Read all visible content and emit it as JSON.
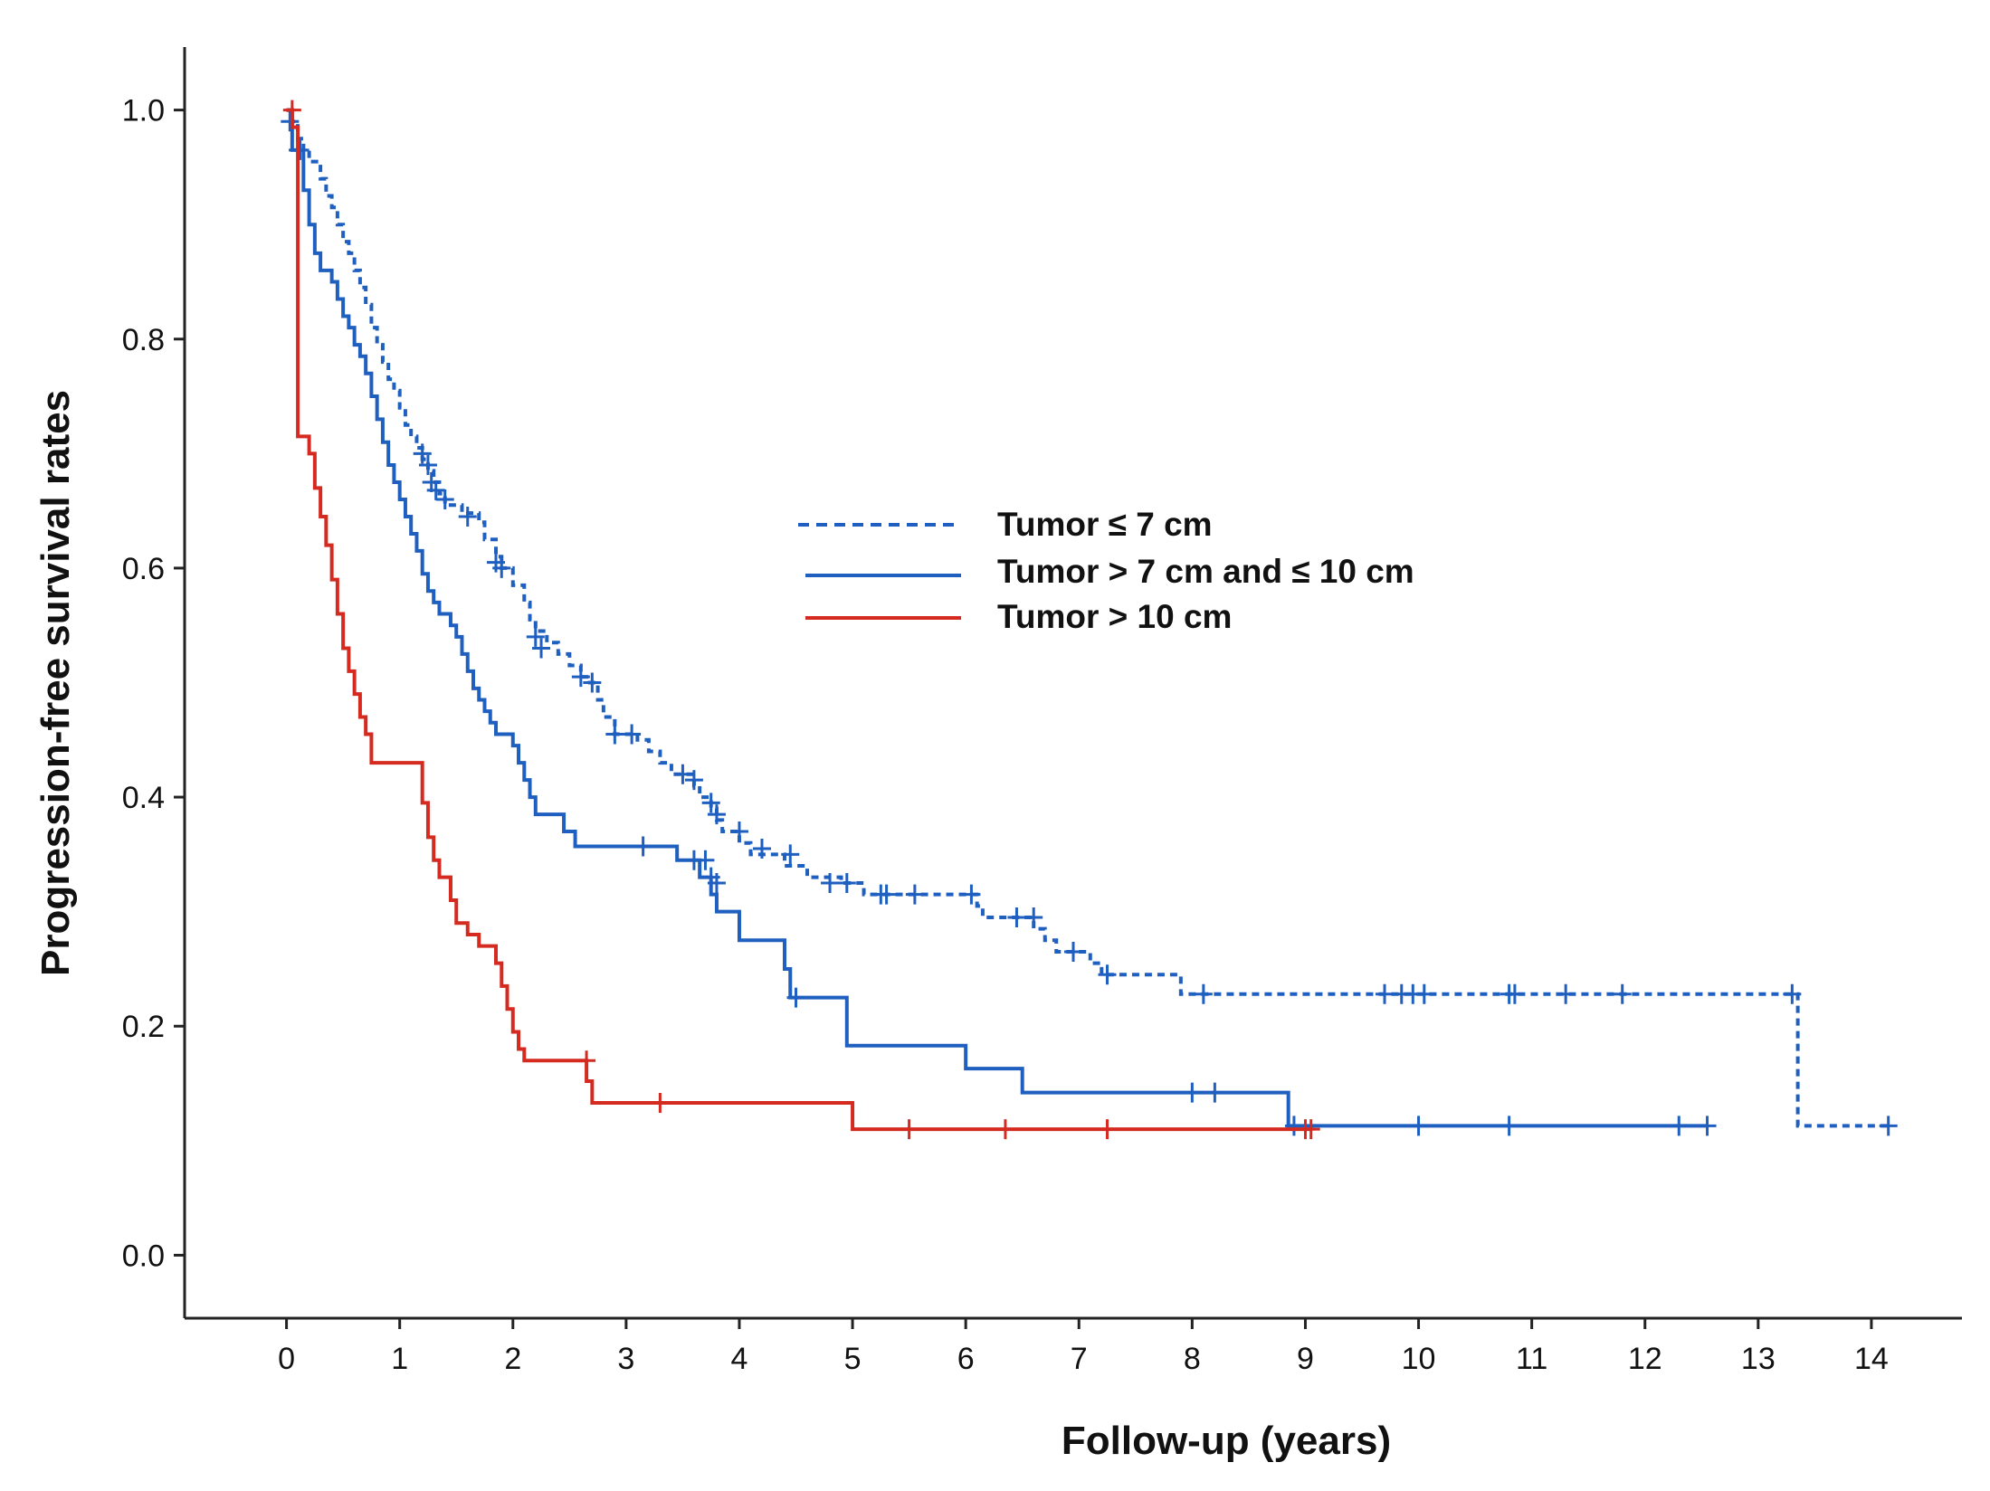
{
  "chart_data": {
    "type": "line",
    "subtype": "kaplan-meier-step",
    "title": "",
    "xlabel": "Follow-up (years)",
    "ylabel": "Progression-free survival rates",
    "xlim": [
      -0.9,
      14.8
    ],
    "ylim": [
      -0.055,
      1.055
    ],
    "xticks": [
      0,
      1,
      2,
      3,
      4,
      5,
      6,
      7,
      8,
      9,
      10,
      11,
      12,
      13,
      14
    ],
    "yticks": [
      0.0,
      0.2,
      0.4,
      0.6,
      0.8,
      1.0
    ],
    "ytick_labels": [
      "0.0",
      "0.2",
      "0.4",
      "0.6",
      "0.8",
      "1.0"
    ],
    "grid": false,
    "legend_position": "center",
    "series": [
      {
        "name": "Tumor ≤ 7 cm",
        "color": "#1f5fbf",
        "dash": "dashed",
        "steps": [
          [
            0,
            1.0
          ],
          [
            0.05,
            0.99
          ],
          [
            0.1,
            0.975
          ],
          [
            0.15,
            0.965
          ],
          [
            0.2,
            0.955
          ],
          [
            0.3,
            0.94
          ],
          [
            0.35,
            0.925
          ],
          [
            0.4,
            0.915
          ],
          [
            0.45,
            0.9
          ],
          [
            0.5,
            0.885
          ],
          [
            0.55,
            0.875
          ],
          [
            0.6,
            0.86
          ],
          [
            0.65,
            0.845
          ],
          [
            0.7,
            0.83
          ],
          [
            0.75,
            0.81
          ],
          [
            0.8,
            0.795
          ],
          [
            0.85,
            0.78
          ],
          [
            0.9,
            0.765
          ],
          [
            0.95,
            0.755
          ],
          [
            1.0,
            0.74
          ],
          [
            1.05,
            0.725
          ],
          [
            1.1,
            0.715
          ],
          [
            1.15,
            0.705
          ],
          [
            1.2,
            0.695
          ],
          [
            1.25,
            0.685
          ],
          [
            1.3,
            0.675
          ],
          [
            1.35,
            0.665
          ],
          [
            1.4,
            0.655
          ],
          [
            1.55,
            0.648
          ],
          [
            1.7,
            0.64
          ],
          [
            1.75,
            0.625
          ],
          [
            1.85,
            0.61
          ],
          [
            1.9,
            0.6
          ],
          [
            2.0,
            0.585
          ],
          [
            2.1,
            0.57
          ],
          [
            2.15,
            0.555
          ],
          [
            2.2,
            0.545
          ],
          [
            2.3,
            0.535
          ],
          [
            2.4,
            0.525
          ],
          [
            2.5,
            0.515
          ],
          [
            2.6,
            0.505
          ],
          [
            2.65,
            0.5
          ],
          [
            2.75,
            0.485
          ],
          [
            2.8,
            0.47
          ],
          [
            2.9,
            0.455
          ],
          [
            3.1,
            0.45
          ],
          [
            3.2,
            0.44
          ],
          [
            3.3,
            0.43
          ],
          [
            3.4,
            0.42
          ],
          [
            3.6,
            0.41
          ],
          [
            3.65,
            0.4
          ],
          [
            3.75,
            0.39
          ],
          [
            3.8,
            0.38
          ],
          [
            3.85,
            0.37
          ],
          [
            4.0,
            0.36
          ],
          [
            4.1,
            0.35
          ],
          [
            4.4,
            0.34
          ],
          [
            4.6,
            0.33
          ],
          [
            4.9,
            0.325
          ],
          [
            5.1,
            0.315
          ],
          [
            6.1,
            0.305
          ],
          [
            6.15,
            0.295
          ],
          [
            6.6,
            0.285
          ],
          [
            6.7,
            0.275
          ],
          [
            6.8,
            0.265
          ],
          [
            7.1,
            0.255
          ],
          [
            7.2,
            0.245
          ],
          [
            7.9,
            0.228
          ],
          [
            13.35,
            0.113
          ],
          [
            14.15,
            0.113
          ]
        ],
        "censored": [
          [
            0.03,
            0.99
          ],
          [
            0.12,
            0.965
          ],
          [
            1.2,
            0.7
          ],
          [
            1.25,
            0.69
          ],
          [
            1.28,
            0.675
          ],
          [
            1.32,
            0.668
          ],
          [
            1.4,
            0.66
          ],
          [
            1.6,
            0.645
          ],
          [
            1.85,
            0.605
          ],
          [
            1.9,
            0.6
          ],
          [
            2.2,
            0.54
          ],
          [
            2.25,
            0.53
          ],
          [
            2.6,
            0.505
          ],
          [
            2.7,
            0.5
          ],
          [
            2.9,
            0.455
          ],
          [
            3.05,
            0.455
          ],
          [
            3.5,
            0.42
          ],
          [
            3.6,
            0.415
          ],
          [
            3.75,
            0.395
          ],
          [
            3.8,
            0.385
          ],
          [
            4.0,
            0.37
          ],
          [
            4.2,
            0.355
          ],
          [
            4.45,
            0.35
          ],
          [
            4.8,
            0.325
          ],
          [
            4.95,
            0.325
          ],
          [
            5.25,
            0.315
          ],
          [
            5.3,
            0.315
          ],
          [
            5.55,
            0.315
          ],
          [
            6.05,
            0.315
          ],
          [
            6.45,
            0.295
          ],
          [
            6.6,
            0.295
          ],
          [
            6.95,
            0.265
          ],
          [
            7.25,
            0.245
          ],
          [
            8.1,
            0.228
          ],
          [
            9.7,
            0.228
          ],
          [
            9.85,
            0.228
          ],
          [
            9.95,
            0.228
          ],
          [
            10.05,
            0.228
          ],
          [
            10.8,
            0.228
          ],
          [
            10.85,
            0.228
          ],
          [
            11.3,
            0.228
          ],
          [
            11.8,
            0.228
          ],
          [
            13.3,
            0.228
          ],
          [
            14.15,
            0.113
          ]
        ]
      },
      {
        "name": "Tumor > 7 cm and ≤ 10 cm",
        "color": "#1f5fbf",
        "dash": "solid",
        "steps": [
          [
            0,
            1.0
          ],
          [
            0.05,
            0.965
          ],
          [
            0.15,
            0.93
          ],
          [
            0.2,
            0.9
          ],
          [
            0.25,
            0.875
          ],
          [
            0.3,
            0.86
          ],
          [
            0.4,
            0.85
          ],
          [
            0.45,
            0.835
          ],
          [
            0.5,
            0.82
          ],
          [
            0.55,
            0.81
          ],
          [
            0.6,
            0.795
          ],
          [
            0.65,
            0.785
          ],
          [
            0.7,
            0.77
          ],
          [
            0.75,
            0.75
          ],
          [
            0.8,
            0.73
          ],
          [
            0.85,
            0.71
          ],
          [
            0.9,
            0.69
          ],
          [
            0.95,
            0.675
          ],
          [
            1.0,
            0.66
          ],
          [
            1.05,
            0.645
          ],
          [
            1.1,
            0.63
          ],
          [
            1.15,
            0.615
          ],
          [
            1.2,
            0.595
          ],
          [
            1.25,
            0.58
          ],
          [
            1.3,
            0.57
          ],
          [
            1.35,
            0.56
          ],
          [
            1.45,
            0.55
          ],
          [
            1.5,
            0.54
          ],
          [
            1.55,
            0.525
          ],
          [
            1.6,
            0.51
          ],
          [
            1.65,
            0.495
          ],
          [
            1.7,
            0.485
          ],
          [
            1.75,
            0.475
          ],
          [
            1.8,
            0.465
          ],
          [
            1.85,
            0.455
          ],
          [
            2.0,
            0.445
          ],
          [
            2.05,
            0.43
          ],
          [
            2.1,
            0.415
          ],
          [
            2.15,
            0.4
          ],
          [
            2.2,
            0.385
          ],
          [
            2.45,
            0.37
          ],
          [
            2.55,
            0.357
          ],
          [
            3.45,
            0.345
          ],
          [
            3.65,
            0.33
          ],
          [
            3.75,
            0.315
          ],
          [
            3.8,
            0.3
          ],
          [
            4.0,
            0.275
          ],
          [
            4.4,
            0.25
          ],
          [
            4.45,
            0.225
          ],
          [
            4.95,
            0.183
          ],
          [
            6.0,
            0.163
          ],
          [
            6.5,
            0.142
          ],
          [
            8.85,
            0.113
          ],
          [
            12.55,
            0.113
          ]
        ],
        "censored": [
          [
            0.1,
            0.965
          ],
          [
            3.15,
            0.357
          ],
          [
            3.6,
            0.345
          ],
          [
            3.7,
            0.345
          ],
          [
            3.75,
            0.33
          ],
          [
            3.8,
            0.325
          ],
          [
            4.5,
            0.225
          ],
          [
            8.0,
            0.142
          ],
          [
            8.2,
            0.142
          ],
          [
            8.9,
            0.113
          ],
          [
            10.0,
            0.113
          ],
          [
            10.8,
            0.113
          ],
          [
            12.3,
            0.113
          ],
          [
            12.55,
            0.113
          ]
        ]
      },
      {
        "name": "Tumor > 10 cm",
        "color": "#d42a20",
        "dash": "solid",
        "steps": [
          [
            0,
            1.0
          ],
          [
            0.05,
            0.985
          ],
          [
            0.1,
            0.715
          ],
          [
            0.2,
            0.7
          ],
          [
            0.25,
            0.67
          ],
          [
            0.3,
            0.645
          ],
          [
            0.35,
            0.62
          ],
          [
            0.4,
            0.59
          ],
          [
            0.45,
            0.56
          ],
          [
            0.5,
            0.53
          ],
          [
            0.55,
            0.51
          ],
          [
            0.6,
            0.49
          ],
          [
            0.65,
            0.47
          ],
          [
            0.7,
            0.455
          ],
          [
            0.75,
            0.43
          ],
          [
            1.2,
            0.395
          ],
          [
            1.25,
            0.365
          ],
          [
            1.3,
            0.345
          ],
          [
            1.35,
            0.33
          ],
          [
            1.45,
            0.31
          ],
          [
            1.5,
            0.29
          ],
          [
            1.6,
            0.28
          ],
          [
            1.7,
            0.27
          ],
          [
            1.85,
            0.255
          ],
          [
            1.9,
            0.235
          ],
          [
            1.95,
            0.215
          ],
          [
            2.0,
            0.195
          ],
          [
            2.05,
            0.18
          ],
          [
            2.1,
            0.17
          ],
          [
            2.65,
            0.152
          ],
          [
            2.7,
            0.133
          ],
          [
            5.0,
            0.11
          ],
          [
            9.05,
            0.11
          ]
        ],
        "censored": [
          [
            0.05,
            1.0
          ],
          [
            2.65,
            0.17
          ],
          [
            3.3,
            0.133
          ],
          [
            5.5,
            0.11
          ],
          [
            6.35,
            0.11
          ],
          [
            7.25,
            0.11
          ],
          [
            9.0,
            0.11
          ],
          [
            9.05,
            0.11
          ]
        ]
      }
    ]
  }
}
